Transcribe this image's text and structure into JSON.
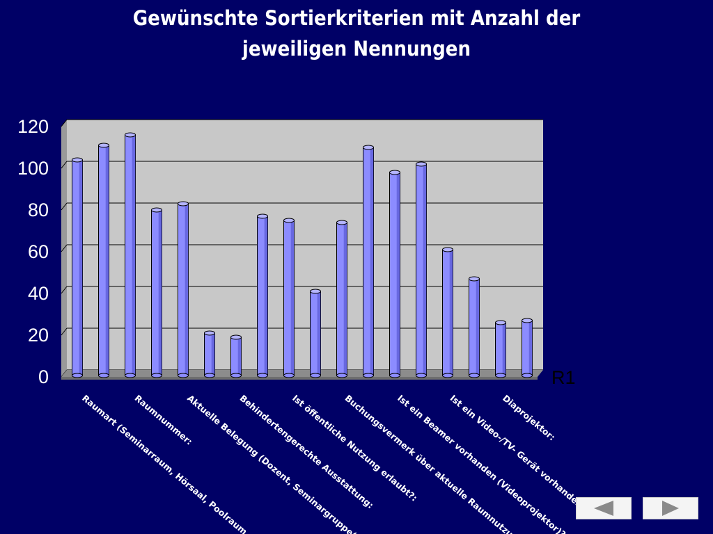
{
  "chart_data": {
    "type": "bar",
    "title": [
      "Gewünschte Sortierkriterien mit Anzahl der",
      "jeweiligen Nennungen"
    ],
    "series": [
      {
        "name": "R1",
        "values": [
          104,
          111,
          116,
          80,
          83,
          21,
          19,
          77,
          75,
          41,
          74,
          110,
          98,
          102,
          61,
          47,
          26,
          27
        ]
      }
    ],
    "ylim": [
      0,
      120
    ],
    "yticks": [
      0,
      20,
      40,
      60,
      80,
      100,
      120
    ],
    "category_labels": [
      "Raumart (Seminarraum, Hörsaal, Poolraum usw.):",
      "Raumnummer:",
      "Aktuelle Belegung (Dozent, Seminargruppe(n)):",
      "Behindertengerechte Ausstattung:",
      "Ist öffentliche Nutzung erlaubt?:",
      "Buchungsvermerk über aktuelle Raumnutzung:",
      "Ist ein Beamer vorhanden (Videoprojektor)?:",
      "Ist ein Video-/TV- Gerät vorhanden?:",
      "Diaprojektor:"
    ],
    "legend": "right",
    "grid": true,
    "colors": {
      "background": "#000066",
      "wall": "#c8c8c8",
      "floor": "#8c8c8c",
      "bar": "#8c8cff",
      "bar_side": "#4a4ac8",
      "gridline": "#000000"
    }
  },
  "nav": {
    "prev_icon": "triangle-left-icon",
    "next_icon": "triangle-right-icon"
  }
}
